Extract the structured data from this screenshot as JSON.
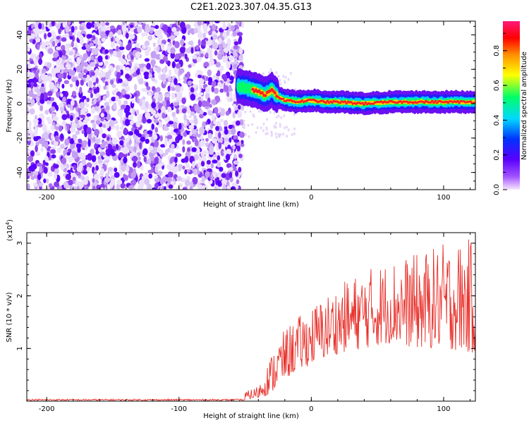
{
  "title": "C2E1.2023.307.04.35.G13",
  "chart_data": [
    {
      "type": "heatmap",
      "xlabel": "Height of straight line (km)",
      "ylabel": "Frequency (Hz)",
      "xlim": [
        -215,
        124
      ],
      "ylim": [
        -50,
        48
      ],
      "xticks": [
        -200,
        -100,
        0,
        100
      ],
      "yticks": [
        -40,
        -20,
        0,
        20,
        40
      ],
      "colorbar": {
        "label": "Normalized spectral amplitude",
        "range": [
          0.0,
          0.97
        ],
        "ticks": [
          "0.0",
          "0.2",
          "0.4",
          "0.6",
          "0.8"
        ],
        "tick_values": [
          0.0,
          0.2,
          0.4,
          0.6,
          0.8
        ],
        "colormap": [
          "#ffffff",
          "#d8c2f5",
          "#8a3cf0",
          "#5a00ff",
          "#0033ff",
          "#00c8ff",
          "#00ff66",
          "#ffff00",
          "#ff8000",
          "#ff0000",
          "#ff1a7a"
        ]
      },
      "noise_region": {
        "x_from": -215,
        "x_to": -52,
        "f_range": [
          -50,
          48
        ]
      },
      "signal_ridge": {
        "x": [
          -55,
          -48,
          -40,
          -35,
          -30,
          -25,
          -20,
          -10,
          0,
          10,
          20,
          40,
          60,
          80,
          100,
          124
        ],
        "f": [
          10,
          9,
          7,
          5,
          8,
          4,
          2,
          1,
          2,
          1,
          1,
          0,
          1,
          1,
          1,
          1
        ]
      }
    },
    {
      "type": "line",
      "xlabel": "Height of straight line (km)",
      "ylabel": "SNR (10 * v/v)",
      "y_multiplier": "(x10",
      "y_multiplier_exp": "4",
      "y_multiplier_close": ")",
      "xlim": [
        -215,
        124
      ],
      "ylim": [
        0,
        3.2
      ],
      "xticks": [
        -200,
        -100,
        0,
        100
      ],
      "yticks": [
        1,
        2,
        3
      ],
      "series": [
        {
          "color": "#e8302a",
          "envelope": {
            "x": [
              -215,
              -60,
              -40,
              -30,
              -25,
              -15,
              0,
              20,
              40,
              60,
              80,
              100,
              124
            ],
            "low": [
              0.0,
              0.0,
              0.05,
              0.15,
              0.3,
              0.5,
              0.7,
              0.9,
              1.0,
              1.1,
              1.0,
              1.0,
              0.9
            ],
            "high": [
              0.04,
              0.05,
              0.3,
              0.9,
              1.2,
              1.5,
              1.8,
              2.2,
              2.5,
              2.7,
              2.8,
              3.0,
              3.1
            ]
          }
        }
      ]
    }
  ]
}
